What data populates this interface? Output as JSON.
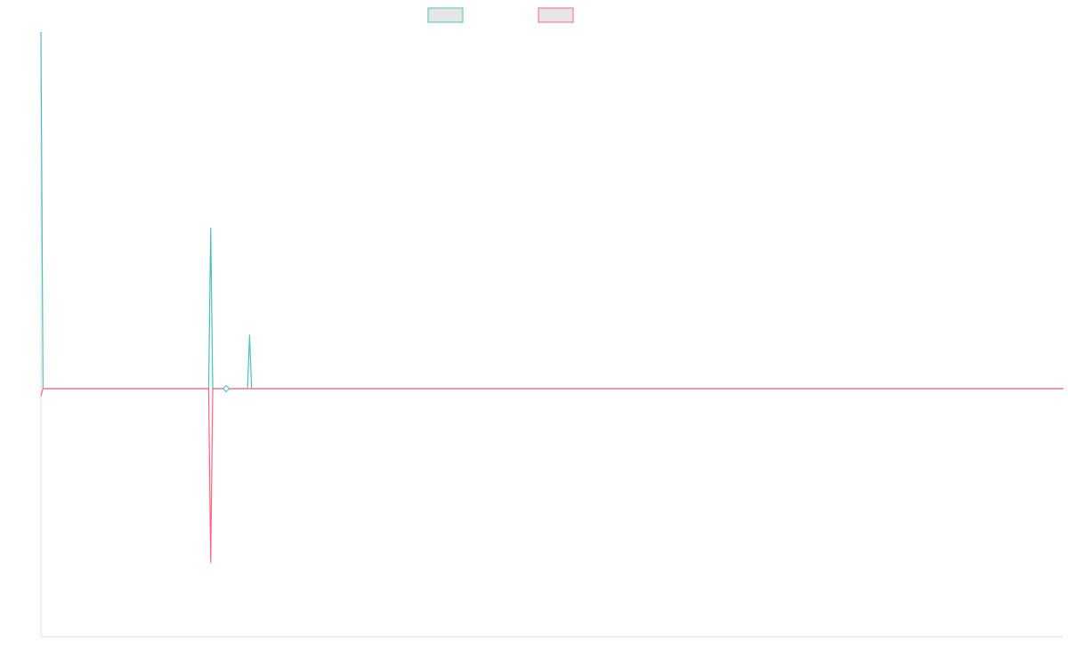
{
  "chart_data": {
    "type": "line",
    "title": "",
    "xlabel": "",
    "ylabel": "",
    "grid": false,
    "legend": "top-center",
    "xlim": [
      0,
      250
    ],
    "ylim": [
      -1,
      1
    ],
    "series": [
      {
        "color": "#4bc0c0",
        "fill": "#e6e6e6",
        "points": [
          [
            0,
            1
          ],
          [
            0.5,
            0
          ],
          [
            41,
            0
          ],
          [
            41.5,
            0.45
          ],
          [
            42,
            0
          ],
          [
            50.5,
            0
          ],
          [
            51,
            0.15
          ],
          [
            51.5,
            0
          ],
          [
            250,
            0
          ]
        ]
      },
      {
        "color": "#ff6384",
        "fill": "#e6e6e6",
        "points": [
          [
            0,
            -0.03
          ],
          [
            0.5,
            0
          ],
          [
            41,
            0
          ],
          [
            41.5,
            -0.7
          ],
          [
            42,
            0
          ],
          [
            250,
            0
          ]
        ]
      }
    ],
    "markers": [
      {
        "x": 45.3,
        "y": 0,
        "shape": "diamond",
        "color": "#4bc0c0"
      }
    ]
  }
}
